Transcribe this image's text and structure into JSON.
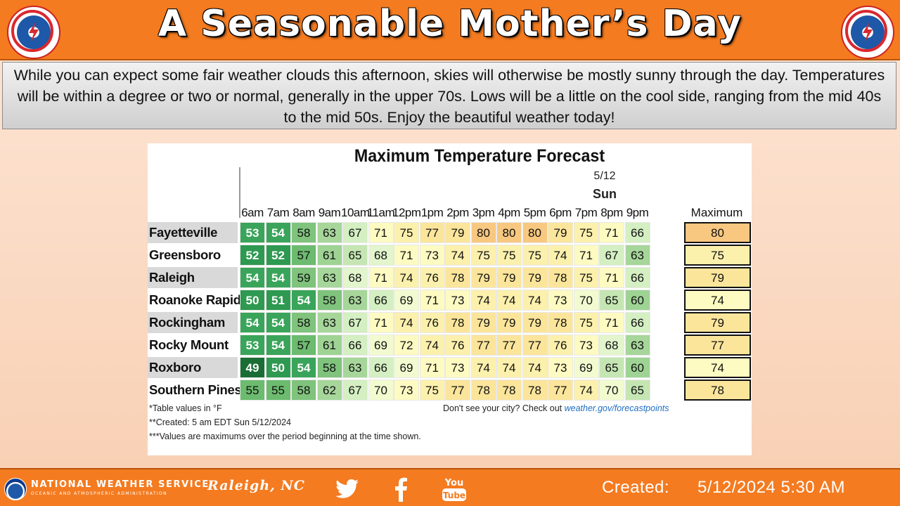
{
  "header": {
    "title": "A Seasonable Mother’s Day"
  },
  "summary": {
    "text": "While you can expect some fair weather clouds this afternoon, skies will otherwise be mostly sunny through the day. Temperatures will be within a degree or two or normal, generally in the upper 70s.  Lows will be a little on the cool side, ranging from the mid 40s to the mid 50s.  Enjoy the beautiful weather today!"
  },
  "forecast": {
    "title": "Maximum Temperature Forecast",
    "date": "5/12",
    "day": "Sun",
    "max_header": "Maximum",
    "hours": [
      "6am",
      "7am",
      "8am",
      "9am",
      "10am",
      "11am",
      "12pm",
      "1pm",
      "2pm",
      "3pm",
      "4pm",
      "5pm",
      "6pm",
      "7pm",
      "8pm",
      "9pm"
    ],
    "rows": [
      {
        "city": "Fayetteville",
        "temps": [
          53,
          54,
          58,
          63,
          67,
          71,
          75,
          77,
          79,
          80,
          80,
          80,
          79,
          75,
          71,
          66
        ],
        "max": 80
      },
      {
        "city": "Greensboro",
        "temps": [
          52,
          52,
          57,
          61,
          65,
          68,
          71,
          73,
          74,
          75,
          75,
          75,
          74,
          71,
          67,
          63
        ],
        "max": 75
      },
      {
        "city": "Raleigh",
        "temps": [
          54,
          54,
          59,
          63,
          68,
          71,
          74,
          76,
          78,
          79,
          79,
          79,
          78,
          75,
          71,
          66
        ],
        "max": 79
      },
      {
        "city": "Roanoke Rapids",
        "temps": [
          50,
          51,
          54,
          58,
          63,
          66,
          69,
          71,
          73,
          74,
          74,
          74,
          73,
          70,
          65,
          60
        ],
        "max": 74
      },
      {
        "city": "Rockingham",
        "temps": [
          54,
          54,
          58,
          63,
          67,
          71,
          74,
          76,
          78,
          79,
          79,
          79,
          78,
          75,
          71,
          66
        ],
        "max": 79
      },
      {
        "city": "Rocky Mount",
        "temps": [
          53,
          54,
          57,
          61,
          66,
          69,
          72,
          74,
          76,
          77,
          77,
          77,
          76,
          73,
          68,
          63
        ],
        "max": 77
      },
      {
        "city": "Roxboro",
        "temps": [
          49,
          50,
          54,
          58,
          63,
          66,
          69,
          71,
          73,
          74,
          74,
          74,
          73,
          69,
          65,
          60
        ],
        "max": 74
      },
      {
        "city": "Southern Pines",
        "temps": [
          55,
          55,
          58,
          62,
          67,
          70,
          73,
          75,
          77,
          78,
          78,
          78,
          77,
          74,
          70,
          65
        ],
        "max": 78
      }
    ],
    "notes": [
      "*Table values in °F",
      "**Created: 5 am EDT Sun 5/12/2024",
      "***Values are maximums over the period beginning at the time shown."
    ],
    "cta_text": "Don't see your city? Check out ",
    "cta_link": "weather.gov/forecastpoints"
  },
  "footer": {
    "agency": "NATIONAL WEATHER SERVICE",
    "agency_sub": "OCEANIC AND ATMOSPHERIC ADMINISTRATION",
    "office": "Raleigh, NC",
    "created_label": "Created:",
    "created_value": "5/12/2024 5:30 AM",
    "icons": [
      "twitter-icon",
      "facebook-icon",
      "youtube-icon"
    ]
  },
  "colors": {
    "accent": "#f47b20"
  }
}
